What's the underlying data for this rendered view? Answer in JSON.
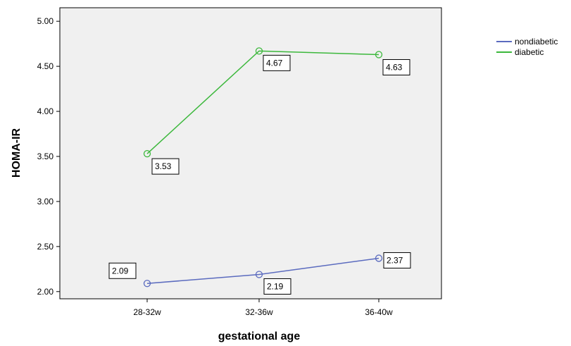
{
  "chart_data": {
    "type": "line",
    "xlabel": "gestational age",
    "ylabel": "HOMA-IR",
    "categories": [
      "28-32w",
      "32-36w",
      "36-40w"
    ],
    "ylim": [
      1.92,
      5.15
    ],
    "yticks": [
      2.0,
      2.5,
      3.0,
      3.5,
      4.0,
      4.5,
      5.0
    ],
    "ytick_labels": [
      "2.00",
      "2.50",
      "3.00",
      "3.50",
      "4.00",
      "4.50",
      "5.00"
    ],
    "plot_background": "#f0f0f0",
    "grid": false,
    "legend_position": "top-right",
    "series": [
      {
        "name": "nondiabetic",
        "color": "#5b6bbf",
        "values": [
          2.09,
          2.19,
          2.37
        ],
        "labels": [
          "2.09",
          "2.19",
          "2.37"
        ]
      },
      {
        "name": "diabetic",
        "color": "#3cb83c",
        "values": [
          3.53,
          4.67,
          4.63
        ],
        "labels": [
          "3.53",
          "4.67",
          "4.63"
        ]
      }
    ]
  }
}
